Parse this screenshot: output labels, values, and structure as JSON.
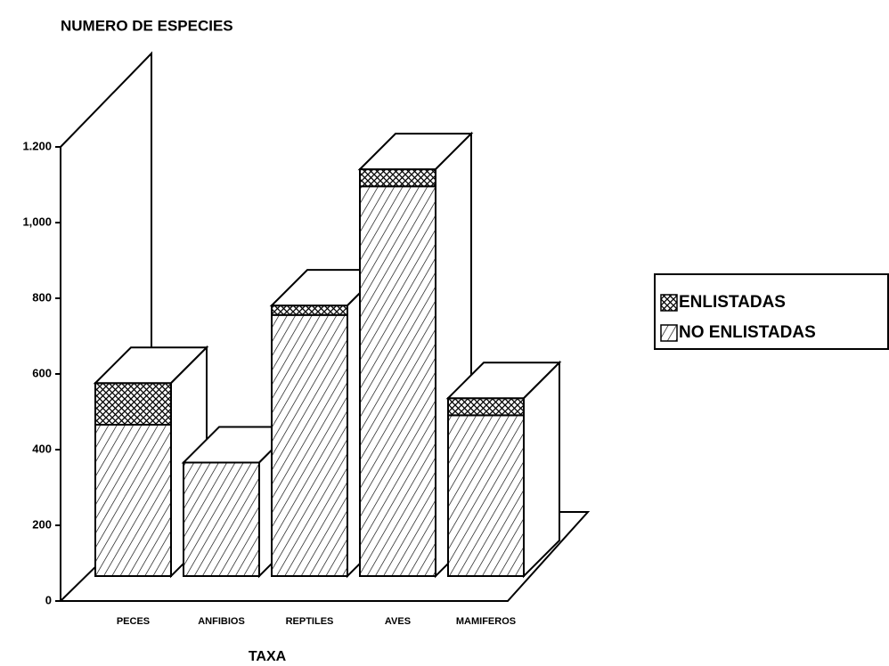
{
  "chart_data": {
    "type": "bar3d_stacked",
    "title": "NUMERO DE ESPECIES",
    "x_label": "TAXA",
    "categories": [
      "PECES",
      "ANFIBIOS",
      "REPTILES",
      "AVES",
      "MAMIFEROS"
    ],
    "series": [
      {
        "name": "NO ENLISTADAS",
        "color": "#000000",
        "values": [
          400,
          300,
          690,
          1030,
          425
        ]
      },
      {
        "name": "ENLISTADAS",
        "color": "#000000",
        "values": [
          110,
          0,
          25,
          45,
          45
        ]
      }
    ],
    "ylim": [
      0,
      1200
    ],
    "yticks": [
      0,
      200,
      400,
      600,
      800,
      {
        "value": 1000,
        "label": "1,000"
      },
      {
        "value": 1200,
        "label": "1.200"
      }
    ],
    "legend": "right"
  }
}
